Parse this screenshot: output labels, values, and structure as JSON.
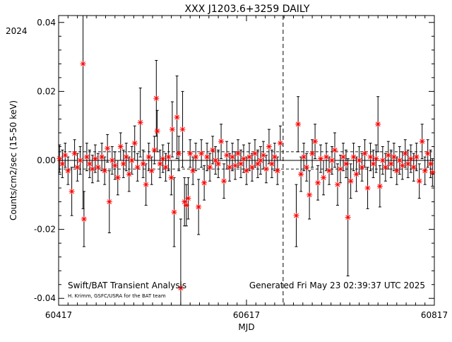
{
  "chart_data": {
    "type": "scatter",
    "title": "XXX J1203.6+3259 DAILY",
    "xlabel": "MJD",
    "ylabel": "Counts/cm2/sec (15-50 keV)",
    "year_label": "2024",
    "xlim": [
      60417,
      60817
    ],
    "ylim": [
      -0.042,
      0.042
    ],
    "x_ticks": [
      60417,
      60617,
      60817
    ],
    "y_ticks": [
      -0.04,
      -0.02,
      0.0,
      0.02,
      0.04
    ],
    "y_tick_labels": [
      "-0.04",
      "-0.02",
      "0.00",
      "0.02",
      "0.04"
    ],
    "grid": false,
    "reference_line": {
      "y": 0.0,
      "style": "solid"
    },
    "dashed_band": [
      -0.0025,
      0.0025
    ],
    "vertical_marker": {
      "x": 60656,
      "style": "dashed"
    },
    "marker_color": "#ff0000",
    "errorbar_color": "#000000",
    "footer": {
      "left": "Swift/BAT Transient Analysis",
      "credit": "H. Krimm, GSFC/USRA for the BAT team",
      "right": "Generated Fri May 23 02:39:37 UTC 2025"
    },
    "series": [
      {
        "points": [
          {
            "x": 60418,
            "y": 0.0005,
            "err": 0.004
          },
          {
            "x": 60421,
            "y": -0.001,
            "err": 0.004
          },
          {
            "x": 60424,
            "y": 0.0015,
            "err": 0.0035
          },
          {
            "x": 60427,
            "y": -0.003,
            "err": 0.004
          },
          {
            "x": 60431,
            "y": -0.009,
            "err": 0.007
          },
          {
            "x": 60434,
            "y": 0.002,
            "err": 0.004
          },
          {
            "x": 60437,
            "y": -0.002,
            "err": 0.004
          },
          {
            "x": 60440,
            "y": 0.0,
            "err": 0.004
          },
          {
            "x": 60443,
            "y": 0.028,
            "err": 0.042
          },
          {
            "x": 60444,
            "y": -0.017,
            "err": 0.008
          },
          {
            "x": 60447,
            "y": 0.001,
            "err": 0.004
          },
          {
            "x": 60450,
            "y": -0.001,
            "err": 0.004
          },
          {
            "x": 60453,
            "y": -0.0025,
            "err": 0.004
          },
          {
            "x": 60456,
            "y": 0.0005,
            "err": 0.004
          },
          {
            "x": 60459,
            "y": -0.002,
            "err": 0.004
          },
          {
            "x": 60463,
            "y": 0.001,
            "err": 0.004
          },
          {
            "x": 60466,
            "y": -0.003,
            "err": 0.004
          },
          {
            "x": 60469,
            "y": 0.0035,
            "err": 0.004
          },
          {
            "x": 60471,
            "y": -0.012,
            "err": 0.009
          },
          {
            "x": 60474,
            "y": 0.0,
            "err": 0.004
          },
          {
            "x": 60477,
            "y": -0.0015,
            "err": 0.004
          },
          {
            "x": 60480,
            "y": -0.005,
            "err": 0.005
          },
          {
            "x": 60483,
            "y": 0.004,
            "err": 0.004
          },
          {
            "x": 60486,
            "y": -0.001,
            "err": 0.004
          },
          {
            "x": 60489,
            "y": 0.001,
            "err": 0.004
          },
          {
            "x": 60492,
            "y": -0.004,
            "err": 0.005
          },
          {
            "x": 60495,
            "y": 0.0,
            "err": 0.004
          },
          {
            "x": 60498,
            "y": 0.005,
            "err": 0.005
          },
          {
            "x": 60501,
            "y": -0.002,
            "err": 0.004
          },
          {
            "x": 60504,
            "y": 0.011,
            "err": 0.01
          },
          {
            "x": 60507,
            "y": -0.001,
            "err": 0.004
          },
          {
            "x": 60510,
            "y": -0.007,
            "err": 0.006
          },
          {
            "x": 60513,
            "y": 0.001,
            "err": 0.004
          },
          {
            "x": 60516,
            "y": -0.003,
            "err": 0.004
          },
          {
            "x": 60519,
            "y": 0.003,
            "err": 0.004
          },
          {
            "x": 60521,
            "y": 0.018,
            "err": 0.011
          },
          {
            "x": 60522,
            "y": 0.0085,
            "err": 0.006
          },
          {
            "x": 60525,
            "y": -0.001,
            "err": 0.004
          },
          {
            "x": 60528,
            "y": 0.0005,
            "err": 0.004
          },
          {
            "x": 60531,
            "y": -0.002,
            "err": 0.004
          },
          {
            "x": 60534,
            "y": 0.001,
            "err": 0.004
          },
          {
            "x": 60537,
            "y": -0.005,
            "err": 0.005
          },
          {
            "x": 60538,
            "y": 0.009,
            "err": 0.008
          },
          {
            "x": 60540,
            "y": -0.015,
            "err": 0.01
          },
          {
            "x": 60543,
            "y": 0.0125,
            "err": 0.012
          },
          {
            "x": 60545,
            "y": 0.002,
            "err": 0.005
          },
          {
            "x": 60547,
            "y": -0.037,
            "err": 0.02
          },
          {
            "x": 60549,
            "y": 0.009,
            "err": 0.011
          },
          {
            "x": 60551,
            "y": -0.012,
            "err": 0.007
          },
          {
            "x": 60553,
            "y": -0.013,
            "err": 0.006
          },
          {
            "x": 60555,
            "y": -0.011,
            "err": 0.006
          },
          {
            "x": 60557,
            "y": 0.002,
            "err": 0.004
          },
          {
            "x": 60560,
            "y": -0.003,
            "err": 0.004
          },
          {
            "x": 60563,
            "y": 0.001,
            "err": 0.004
          },
          {
            "x": 60566,
            "y": -0.0135,
            "err": 0.008
          },
          {
            "x": 60569,
            "y": 0.002,
            "err": 0.004
          },
          {
            "x": 60572,
            "y": -0.0065,
            "err": 0.005
          },
          {
            "x": 60575,
            "y": 0.001,
            "err": 0.004
          },
          {
            "x": 60578,
            "y": -0.002,
            "err": 0.004
          },
          {
            "x": 60581,
            "y": 0.003,
            "err": 0.004
          },
          {
            "x": 60584,
            "y": 0.0,
            "err": 0.004
          },
          {
            "x": 60587,
            "y": -0.001,
            "err": 0.004
          },
          {
            "x": 60590,
            "y": 0.0055,
            "err": 0.005
          },
          {
            "x": 60593,
            "y": -0.006,
            "err": 0.005
          },
          {
            "x": 60596,
            "y": 0.0015,
            "err": 0.004
          },
          {
            "x": 60599,
            "y": -0.002,
            "err": 0.004
          },
          {
            "x": 60602,
            "y": 0.001,
            "err": 0.004
          },
          {
            "x": 60605,
            "y": -0.0015,
            "err": 0.004
          },
          {
            "x": 60608,
            "y": 0.002,
            "err": 0.004
          },
          {
            "x": 60611,
            "y": -0.001,
            "err": 0.004
          },
          {
            "x": 60614,
            "y": 0.0005,
            "err": 0.004
          },
          {
            "x": 60617,
            "y": -0.003,
            "err": 0.004
          },
          {
            "x": 60620,
            "y": 0.001,
            "err": 0.004
          },
          {
            "x": 60623,
            "y": -0.002,
            "err": 0.004
          },
          {
            "x": 60626,
            "y": 0.002,
            "err": 0.004
          },
          {
            "x": 60629,
            "y": -0.001,
            "err": 0.004
          },
          {
            "x": 60632,
            "y": 0.0,
            "err": 0.004
          },
          {
            "x": 60635,
            "y": 0.0015,
            "err": 0.004
          },
          {
            "x": 60638,
            "y": -0.0025,
            "err": 0.004
          },
          {
            "x": 60641,
            "y": 0.004,
            "err": 0.005
          },
          {
            "x": 60644,
            "y": -0.001,
            "err": 0.004
          },
          {
            "x": 60647,
            "y": 0.001,
            "err": 0.004
          },
          {
            "x": 60650,
            "y": -0.003,
            "err": 0.004
          },
          {
            "x": 60653,
            "y": 0.005,
            "err": 0.005
          },
          {
            "x": 60670,
            "y": -0.016,
            "err": 0.009
          },
          {
            "x": 60672,
            "y": 0.0105,
            "err": 0.008
          },
          {
            "x": 60675,
            "y": -0.004,
            "err": 0.005
          },
          {
            "x": 60678,
            "y": 0.001,
            "err": 0.004
          },
          {
            "x": 60681,
            "y": -0.002,
            "err": 0.004
          },
          {
            "x": 60684,
            "y": -0.01,
            "err": 0.007
          },
          {
            "x": 60687,
            "y": 0.002,
            "err": 0.004
          },
          {
            "x": 60690,
            "y": 0.0055,
            "err": 0.005
          },
          {
            "x": 60693,
            "y": -0.0065,
            "err": 0.005
          },
          {
            "x": 60696,
            "y": 0.0005,
            "err": 0.004
          },
          {
            "x": 60699,
            "y": -0.005,
            "err": 0.005
          },
          {
            "x": 60702,
            "y": 0.001,
            "err": 0.004
          },
          {
            "x": 60705,
            "y": -0.003,
            "err": 0.004
          },
          {
            "x": 60708,
            "y": 0.0,
            "err": 0.004
          },
          {
            "x": 60711,
            "y": 0.003,
            "err": 0.005
          },
          {
            "x": 60714,
            "y": -0.007,
            "err": 0.006
          },
          {
            "x": 60717,
            "y": -0.0025,
            "err": 0.004
          },
          {
            "x": 60720,
            "y": 0.001,
            "err": 0.004
          },
          {
            "x": 60723,
            "y": -0.001,
            "err": 0.004
          },
          {
            "x": 60725,
            "y": -0.0165,
            "err": 0.017
          },
          {
            "x": 60728,
            "y": -0.006,
            "err": 0.005
          },
          {
            "x": 60731,
            "y": 0.001,
            "err": 0.004
          },
          {
            "x": 60734,
            "y": -0.004,
            "err": 0.005
          },
          {
            "x": 60737,
            "y": 0.0,
            "err": 0.004
          },
          {
            "x": 60740,
            "y": -0.002,
            "err": 0.004
          },
          {
            "x": 60743,
            "y": 0.002,
            "err": 0.004
          },
          {
            "x": 60746,
            "y": -0.008,
            "err": 0.006
          },
          {
            "x": 60749,
            "y": 0.001,
            "err": 0.004
          },
          {
            "x": 60752,
            "y": -0.001,
            "err": 0.004
          },
          {
            "x": 60755,
            "y": 0.0005,
            "err": 0.004
          },
          {
            "x": 60757,
            "y": 0.0105,
            "err": 0.008
          },
          {
            "x": 60759,
            "y": -0.0075,
            "err": 0.006
          },
          {
            "x": 60762,
            "y": 0.0,
            "err": 0.004
          },
          {
            "x": 60765,
            "y": -0.002,
            "err": 0.004
          },
          {
            "x": 60768,
            "y": 0.0015,
            "err": 0.004
          },
          {
            "x": 60771,
            "y": -0.001,
            "err": 0.004
          },
          {
            "x": 60774,
            "y": 0.001,
            "err": 0.004
          },
          {
            "x": 60777,
            "y": -0.003,
            "err": 0.004
          },
          {
            "x": 60780,
            "y": 0.0,
            "err": 0.004
          },
          {
            "x": 60783,
            "y": -0.0015,
            "err": 0.004
          },
          {
            "x": 60786,
            "y": 0.002,
            "err": 0.004
          },
          {
            "x": 60789,
            "y": -0.001,
            "err": 0.004
          },
          {
            "x": 60792,
            "y": 0.0005,
            "err": 0.004
          },
          {
            "x": 60795,
            "y": -0.002,
            "err": 0.004
          },
          {
            "x": 60798,
            "y": 0.001,
            "err": 0.004
          },
          {
            "x": 60801,
            "y": -0.006,
            "err": 0.005
          },
          {
            "x": 60804,
            "y": 0.0055,
            "err": 0.005
          },
          {
            "x": 60807,
            "y": -0.003,
            "err": 0.004
          },
          {
            "x": 60810,
            "y": 0.002,
            "err": 0.004
          },
          {
            "x": 60813,
            "y": -0.001,
            "err": 0.004
          },
          {
            "x": 60815,
            "y": -0.0035,
            "err": 0.004
          }
        ]
      }
    ]
  }
}
